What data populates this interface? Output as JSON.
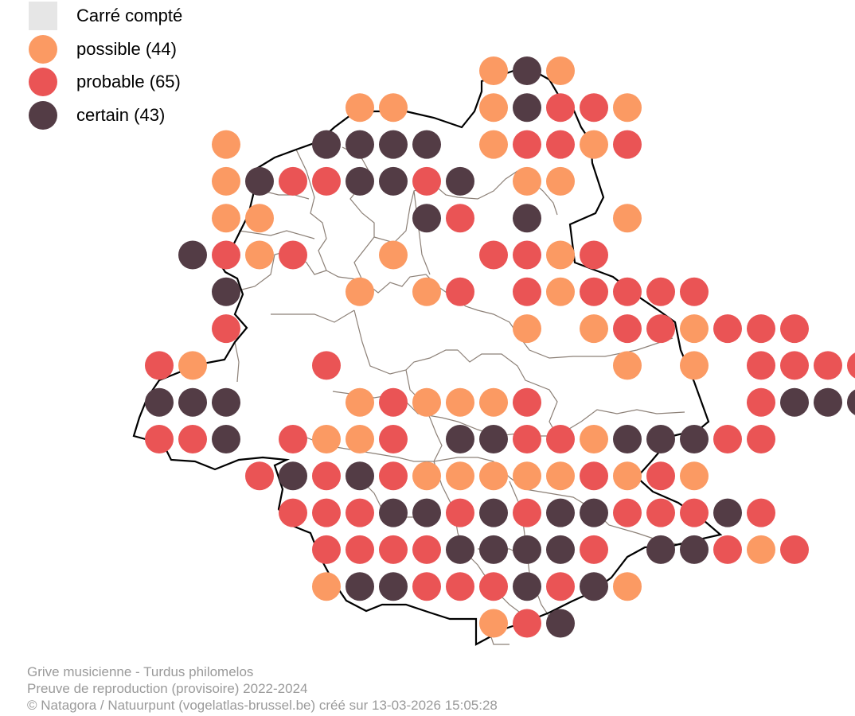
{
  "legend": {
    "counted_label": "Carré compté",
    "possible_label": "possible (44)",
    "probable_label": "probable (65)",
    "certain_label": "certain (43)"
  },
  "colors": {
    "counted": "#e6e6e6",
    "possible": "#fb9a63",
    "probable": "#ea5455",
    "certain": "#533c45",
    "region_outline": "#000000",
    "commune_lines": "#8c8077"
  },
  "caption": {
    "line1": "Grive musicienne - Turdus philomelos",
    "line2": "Preuve de reproduction (provisoire) 2022-2024",
    "line3": "© Natagora / Natuurpunt (vogelatlas-brussel.be) créé sur 13-03-2026 15:05:28"
  },
  "grid": {
    "rows": [
      {
        "row": 0,
        "cells": "..........oco"
      },
      {
        "row": 1,
        "cells": "......oo..ocppo"
      },
      {
        "row": 2,
        "cells": "..o..cccc.oppop"
      },
      {
        "row": 3,
        "cells": "..ocppccpc.oo"
      },
      {
        "row": 4,
        "cells": "..oo....cp.c..o"
      },
      {
        "row": 5,
        "cells": ".cpop..o..ppop"
      },
      {
        "row": 6,
        "cells": "..c...o.op.popppp"
      },
      {
        "row": 7,
        "cells": "..p........o.oppoppp"
      },
      {
        "row": 8,
        "cells": "po...p........o.o.ppppco"
      },
      {
        "row": 9,
        "cells": "ccc...opooop......pccccp"
      },
      {
        "row": 10,
        "cells": "ppc.poop.ccppocccpp"
      },
      {
        "row": 11,
        "cells": "...pcpcpooooopopo"
      },
      {
        "row": 12,
        "cells": "....pppccpcpccpppcp"
      },
      {
        "row": 13,
        "cells": ".....ppppccccp.ccpop"
      },
      {
        "row": 14,
        "cells": ".....occpppcpco"
      },
      {
        "row": 15,
        "cells": "..........opc"
      }
    ]
  }
}
